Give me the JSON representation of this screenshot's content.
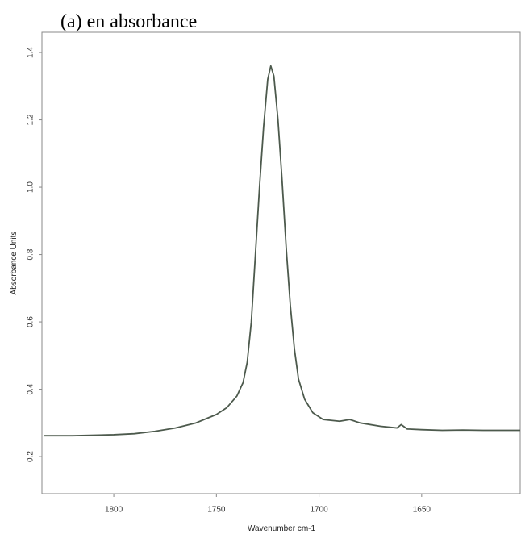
{
  "chart_data": {
    "type": "line",
    "title": "(a) en absorbance",
    "x_label": "Wavenumber cm-1",
    "y_label": "Absorbance Units",
    "x": [
      1834,
      1820,
      1800,
      1790,
      1780,
      1770,
      1760,
      1750,
      1745,
      1740,
      1737,
      1735,
      1733,
      1731,
      1729,
      1727,
      1725,
      1723.5,
      1722,
      1720,
      1718,
      1716,
      1714,
      1712,
      1710,
      1707,
      1703,
      1698,
      1690,
      1685,
      1680,
      1670,
      1662,
      1660,
      1657,
      1650,
      1640,
      1630,
      1620,
      1602
    ],
    "series": [
      {
        "color": "#4d5a4d",
        "values": [
          0.262,
          0.262,
          0.265,
          0.268,
          0.275,
          0.285,
          0.3,
          0.325,
          0.345,
          0.38,
          0.42,
          0.48,
          0.6,
          0.8,
          1.0,
          1.18,
          1.32,
          1.36,
          1.33,
          1.2,
          1.02,
          0.82,
          0.65,
          0.52,
          0.43,
          0.37,
          0.33,
          0.31,
          0.305,
          0.31,
          0.3,
          0.29,
          0.285,
          0.295,
          0.282,
          0.28,
          0.278,
          0.279,
          0.278,
          0.278
        ]
      }
    ],
    "xlim": [
      1835,
      1602
    ],
    "xticks": [
      1800,
      1750,
      1700,
      1650
    ],
    "ylim": [
      0.09,
      1.46
    ],
    "yticks": [
      1.4,
      1.2,
      {
        "value": 1.0,
        "label": "1.0"
      },
      0.8,
      0.6,
      0.4,
      0.2
    ]
  }
}
